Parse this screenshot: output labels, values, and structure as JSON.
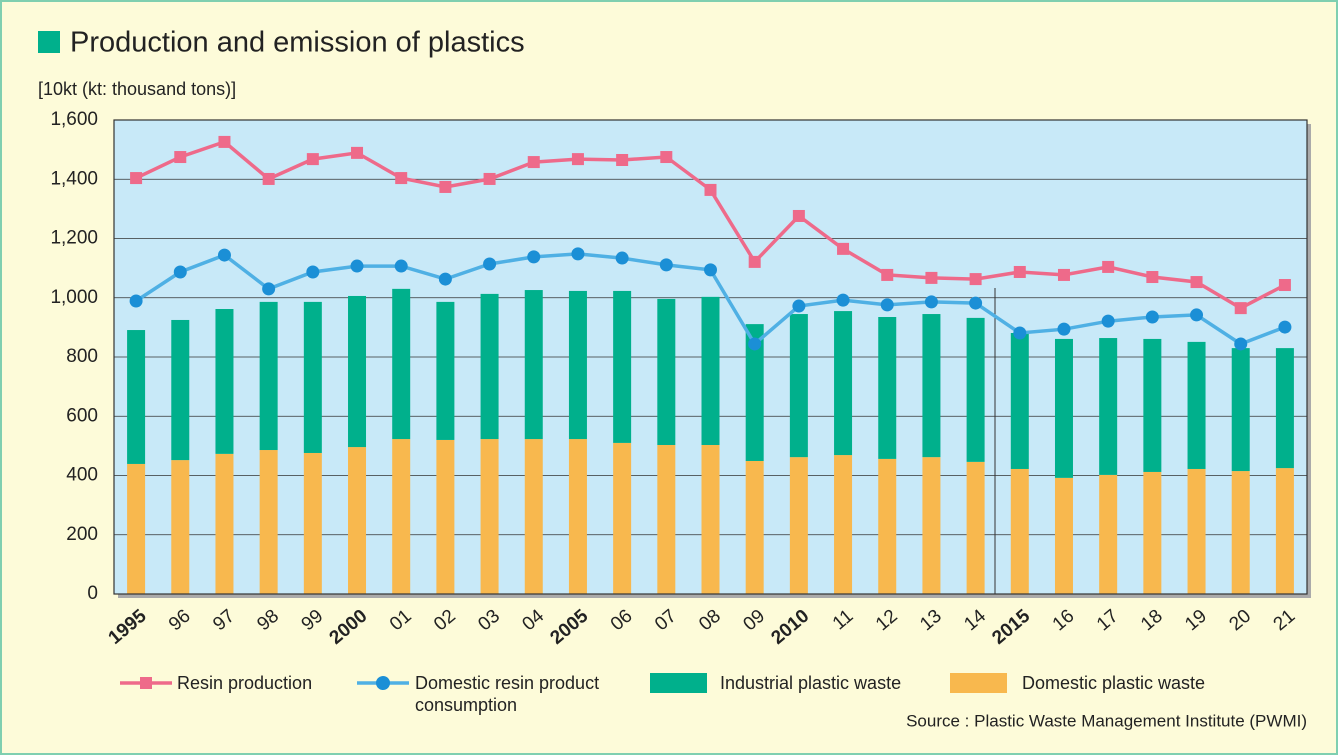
{
  "chart_data": {
    "type": "bar",
    "title": "Production and emission of plastics",
    "y_label": "[10kt (kt: thousand tons)]",
    "source": "Source : Plastic Waste Management Institute (PWMI)",
    "categories": [
      "1995",
      "96",
      "97",
      "98",
      "99",
      "2000",
      "01",
      "02",
      "03",
      "04",
      "2005",
      "06",
      "07",
      "08",
      "09",
      "2010",
      "11",
      "12",
      "13",
      "14",
      "2015",
      "16",
      "17",
      "18",
      "19",
      "20",
      "21"
    ],
    "ylim": [
      0,
      1600
    ],
    "yticks": [
      0,
      200,
      400,
      600,
      800,
      {
        "value": 1000,
        "label": "1,000"
      },
      {
        "value": 1200,
        "label": "1,200"
      },
      {
        "value": 1400,
        "label": "1,400"
      },
      {
        "value": 1600,
        "label": "1,600"
      }
    ],
    "grid": true,
    "series": [
      {
        "name": "Resin production",
        "kind": "line",
        "marker": "square",
        "color": "#ee6a8a",
        "values": [
          1404,
          1475,
          1526,
          1401,
          1468,
          1489,
          1404,
          1374,
          1401,
          1458,
          1468,
          1465,
          1475,
          1364,
          1121,
          1276,
          1165,
          1077,
          1067,
          1063,
          1087,
          1077,
          1104,
          1070,
          1053,
          965,
          1043
        ]
      },
      {
        "name": "Domestic resin product consumption",
        "kind": "line",
        "marker": "circle",
        "color": "#4fb0e4",
        "values": [
          989,
          1087,
          1144,
          1030,
          1087,
          1107,
          1107,
          1063,
          1114,
          1138,
          1148,
          1134,
          1111,
          1094,
          844,
          972,
          992,
          976,
          986,
          982,
          881,
          894,
          921,
          935,
          942,
          844,
          901
        ]
      },
      {
        "name": "Industrial plastic waste",
        "kind": "bar",
        "color": "#00b08c",
        "values": [
          452,
          473,
          489,
          500,
          510,
          510,
          507,
          466,
          490,
          503,
          500,
          513,
          493,
          500,
          462,
          483,
          486,
          479,
          483,
          486,
          459,
          469,
          462,
          449,
          429,
          415,
          405
        ]
      },
      {
        "name": "Domestic plastic waste",
        "kind": "bar",
        "color": "#f8b84e",
        "values": [
          439,
          452,
          473,
          486,
          476,
          496,
          523,
          520,
          523,
          523,
          523,
          510,
          503,
          503,
          449,
          462,
          469,
          456,
          462,
          446,
          422,
          392,
          402,
          412,
          422,
          415,
          425
        ]
      }
    ]
  }
}
